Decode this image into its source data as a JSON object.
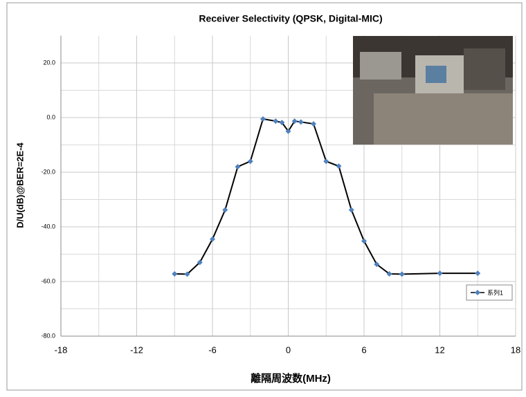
{
  "chart_data": {
    "type": "line",
    "title": "Receiver Selectivity (QPSK, Digital-MIC)",
    "x_label": "離隔周波数(MHz)",
    "y_label": "D/U(dB)@BER=2E-4",
    "x": [
      -9,
      -8,
      -7,
      -6,
      -5,
      -4,
      -3,
      -2,
      -1,
      -0.5,
      0,
      0.5,
      1,
      2,
      3,
      4,
      5,
      6,
      7,
      8,
      9,
      12,
      15
    ],
    "series": [
      {
        "name": "系列1",
        "color": "#4f81bd",
        "values": [
          -57.2,
          -57.3,
          -53,
          -44.5,
          -33.8,
          -18,
          -16,
          -0.5,
          -1.3,
          -1.8,
          -5,
          -1.3,
          -1.6,
          -2.3,
          -16,
          -17.8,
          -33.8,
          -45.2,
          -53.7,
          -57.2,
          -57.3,
          -57,
          -57
        ]
      }
    ],
    "xlim": [
      -18,
      18
    ],
    "xticks": [
      -18,
      -12,
      -6,
      0,
      6,
      12,
      18
    ],
    "xgrid_minor": [
      -15,
      -9,
      -3,
      3,
      9,
      15
    ],
    "ylim": [
      -80,
      30
    ],
    "yticks": [
      {
        "value": -80,
        "label": "-80.0"
      },
      {
        "value": -60,
        "label": "-60.0"
      },
      {
        "value": -40,
        "label": "-40.0"
      },
      {
        "value": -20,
        "label": "-20.0"
      },
      {
        "value": 0,
        "label": "0.0"
      },
      {
        "value": 20,
        "label": "20.0"
      }
    ],
    "ygrid_minor": [
      -70,
      -50,
      -30,
      -10,
      10
    ],
    "grid": true,
    "legend": "lower right"
  }
}
